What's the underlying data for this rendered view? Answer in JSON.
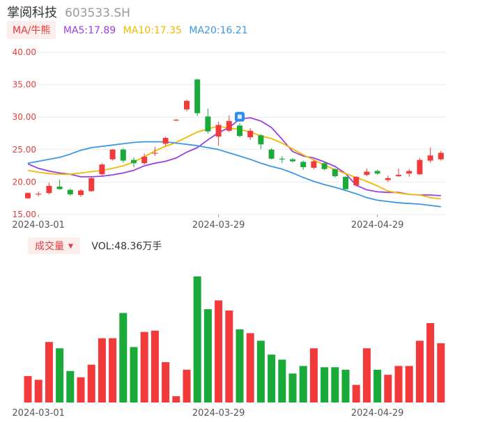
{
  "header": {
    "name": "掌阅科技",
    "code": "603533.SH"
  },
  "ma_legend": {
    "tag": "MA/牛熊",
    "items": [
      {
        "label": "MA5:17.89",
        "color": "#9b3fe0"
      },
      {
        "label": "MA10:17.35",
        "color": "#f5b800"
      },
      {
        "label": "MA20:16.21",
        "color": "#3a97e6"
      }
    ]
  },
  "vol_legend": {
    "tag": "成交量",
    "caret": "▼",
    "value": "VOL:48.36万手"
  },
  "colors": {
    "up": "#f23a3a",
    "down": "#1aaa3a",
    "grid": "#e9e9e9",
    "axis_text": "#666666",
    "price_axis_text": "#e33b3b"
  },
  "chart_data": [
    {
      "type": "candlestick",
      "ylim": [
        15,
        40
      ],
      "yticks": [
        "15.00",
        "20.00",
        "25.00",
        "30.00",
        "35.00",
        "40.00"
      ],
      "xticks": [
        "2024-03-01",
        "2024-03-29",
        "2024-04-29"
      ],
      "xtick_index": [
        1,
        18,
        33
      ],
      "candles": [
        {
          "o": 17.5,
          "c": 18.3,
          "h": 18.4,
          "l": 17.4
        },
        {
          "o": 18.1,
          "c": 18.2,
          "h": 18.5,
          "l": 17.8
        },
        {
          "o": 18.3,
          "c": 19.4,
          "h": 19.9,
          "l": 18.1
        },
        {
          "o": 19.3,
          "c": 18.9,
          "h": 20.4,
          "l": 18.8
        },
        {
          "o": 18.8,
          "c": 18.1,
          "h": 19.0,
          "l": 17.9
        },
        {
          "o": 18.0,
          "c": 18.7,
          "h": 18.9,
          "l": 17.7
        },
        {
          "o": 18.6,
          "c": 20.6,
          "h": 20.8,
          "l": 18.5
        },
        {
          "o": 21.2,
          "c": 22.7,
          "h": 22.9,
          "l": 21.0
        },
        {
          "o": 23.5,
          "c": 25.0,
          "h": 25.1,
          "l": 23.3
        },
        {
          "o": 25.0,
          "c": 23.3,
          "h": 25.2,
          "l": 23.0
        },
        {
          "o": 23.4,
          "c": 22.9,
          "h": 23.8,
          "l": 22.3
        },
        {
          "o": 22.9,
          "c": 23.9,
          "h": 24.4,
          "l": 22.7
        },
        {
          "o": 24.4,
          "c": 24.5,
          "h": 25.4,
          "l": 24.0
        },
        {
          "o": 25.9,
          "c": 26.8,
          "h": 27.0,
          "l": 25.6
        },
        {
          "o": 29.5,
          "c": 29.6,
          "h": 29.7,
          "l": 29.4
        },
        {
          "o": 31.2,
          "c": 32.5,
          "h": 32.7,
          "l": 30.9
        },
        {
          "o": 35.8,
          "c": 30.6,
          "h": 35.9,
          "l": 30.2
        },
        {
          "o": 30.1,
          "c": 27.8,
          "h": 31.3,
          "l": 27.5
        },
        {
          "o": 27.0,
          "c": 28.8,
          "h": 29.3,
          "l": 25.6
        },
        {
          "o": 27.9,
          "c": 29.4,
          "h": 30.3,
          "l": 27.7
        },
        {
          "o": 28.7,
          "c": 27.1,
          "h": 29.1,
          "l": 26.9
        },
        {
          "o": 26.9,
          "c": 27.9,
          "h": 28.3,
          "l": 26.5
        },
        {
          "o": 27.2,
          "c": 25.8,
          "h": 27.4,
          "l": 25.1
        },
        {
          "o": 25.0,
          "c": 23.6,
          "h": 25.2,
          "l": 23.5
        },
        {
          "o": 23.6,
          "c": 23.5,
          "h": 24.0,
          "l": 22.9
        },
        {
          "o": 23.5,
          "c": 23.2,
          "h": 23.7,
          "l": 23.0
        },
        {
          "o": 23.1,
          "c": 22.3,
          "h": 23.3,
          "l": 21.9
        },
        {
          "o": 22.2,
          "c": 23.2,
          "h": 23.4,
          "l": 22.0
        },
        {
          "o": 22.9,
          "c": 22.0,
          "h": 23.2,
          "l": 21.8
        },
        {
          "o": 22.0,
          "c": 20.9,
          "h": 22.1,
          "l": 20.7
        },
        {
          "o": 20.8,
          "c": 18.9,
          "h": 20.9,
          "l": 18.6
        },
        {
          "o": 19.5,
          "c": 20.8,
          "h": 20.9,
          "l": 19.3
        },
        {
          "o": 21.1,
          "c": 21.6,
          "h": 22.1,
          "l": 20.9
        },
        {
          "o": 21.7,
          "c": 21.3,
          "h": 21.9,
          "l": 21.1
        },
        {
          "o": 20.3,
          "c": 20.6,
          "h": 21.0,
          "l": 20.0
        },
        {
          "o": 20.9,
          "c": 21.1,
          "h": 22.1,
          "l": 20.8
        },
        {
          "o": 21.3,
          "c": 21.7,
          "h": 22.0,
          "l": 20.8
        },
        {
          "o": 21.2,
          "c": 23.4,
          "h": 23.7,
          "l": 21.1
        },
        {
          "o": 23.3,
          "c": 24.1,
          "h": 25.3,
          "l": 23.0
        },
        {
          "o": 23.5,
          "c": 24.5,
          "h": 24.8,
          "l": 23.3
        }
      ],
      "series": [
        {
          "name": "MA5",
          "color": "#9b3fe0",
          "values": [
            22.8,
            22.1,
            21.7,
            21.4,
            21.2,
            20.8,
            20.8,
            20.9,
            21.1,
            21.4,
            21.8,
            22.5,
            22.9,
            23.2,
            23.7,
            24.6,
            25.3,
            26.5,
            27.6,
            28.4,
            29.7,
            29.9,
            29.4,
            28.4,
            26.6,
            24.7,
            24.0,
            23.7,
            23.1,
            22.4,
            21.3,
            19.5,
            18.8,
            18.5,
            18.4,
            18.4,
            18.1,
            18.0,
            18.0,
            17.9
          ]
        },
        {
          "name": "MA10",
          "color": "#f5b800",
          "values": [
            21.8,
            21.5,
            21.3,
            21.2,
            21.2,
            21.4,
            21.6,
            21.8,
            22.1,
            22.5,
            23.1,
            23.9,
            24.8,
            25.5,
            26.1,
            26.9,
            27.7,
            28.2,
            28.6,
            28.3,
            28.1,
            27.7,
            27.1,
            26.7,
            26.0,
            25.1,
            24.2,
            23.4,
            22.6,
            21.9,
            21.3,
            20.7,
            20.1,
            19.4,
            18.6,
            18.3,
            18.1,
            18.0,
            17.6,
            17.4
          ]
        },
        {
          "name": "MA20",
          "color": "#3a97e6",
          "values": [
            22.9,
            23.2,
            23.5,
            23.8,
            24.3,
            24.9,
            25.3,
            25.5,
            25.7,
            25.9,
            26.1,
            26.2,
            26.2,
            26.2,
            26.0,
            25.8,
            25.6,
            25.3,
            25.0,
            24.5,
            24.0,
            23.5,
            22.9,
            22.4,
            22.0,
            21.4,
            20.7,
            20.1,
            19.6,
            19.2,
            18.7,
            18.2,
            17.6,
            17.2,
            17.0,
            16.8,
            16.7,
            16.6,
            16.4,
            16.2
          ]
        }
      ]
    },
    {
      "type": "bar",
      "name": "成交量",
      "xticks": [
        "2024-03-01",
        "2024-03-29",
        "2024-04-29"
      ],
      "xtick_index": [
        1,
        18,
        33
      ],
      "ylim": [
        0,
        1
      ],
      "values": [
        0.21,
        0.18,
        0.48,
        0.43,
        0.25,
        0.2,
        0.3,
        0.51,
        0.51,
        0.71,
        0.44,
        0.56,
        0.57,
        0.32,
        0.05,
        0.26,
        1.0,
        0.74,
        0.81,
        0.73,
        0.58,
        0.55,
        0.49,
        0.38,
        0.34,
        0.23,
        0.29,
        0.43,
        0.28,
        0.28,
        0.26,
        0.14,
        0.43,
        0.26,
        0.22,
        0.29,
        0.29,
        0.49,
        0.63,
        0.47
      ],
      "up": [
        1,
        1,
        1,
        0,
        0,
        1,
        1,
        1,
        1,
        0,
        0,
        1,
        1,
        1,
        1,
        1,
        0,
        0,
        1,
        1,
        0,
        1,
        0,
        0,
        0,
        0,
        0,
        1,
        0,
        0,
        0,
        1,
        1,
        0,
        1,
        1,
        1,
        1,
        1,
        1
      ]
    }
  ]
}
